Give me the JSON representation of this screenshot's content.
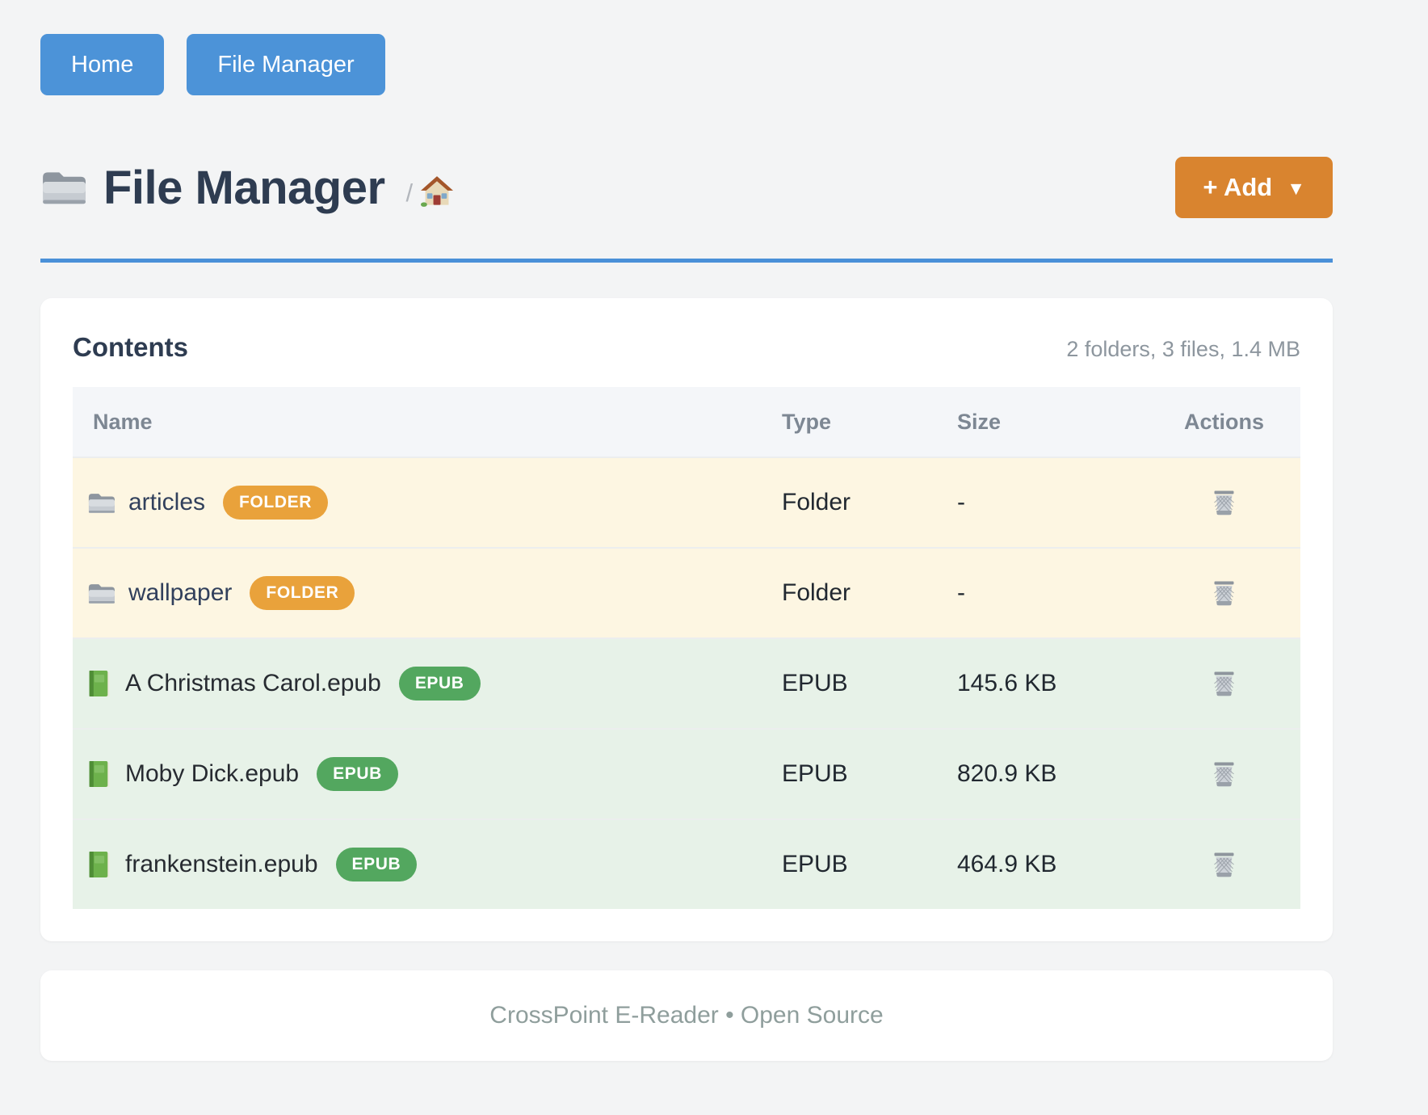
{
  "nav": {
    "buttons": [
      {
        "label": "Home"
      },
      {
        "label": "File Manager"
      }
    ]
  },
  "header": {
    "title": "File Manager",
    "title_icon": "folder-icon",
    "breadcrumb": {
      "separator": "/",
      "home_icon": "house-icon"
    },
    "add_button": {
      "label": "+ Add",
      "caret": "▼"
    }
  },
  "panel": {
    "title": "Contents",
    "summary": "2 folders, 3 files, 1.4 MB",
    "table": {
      "columns": [
        "Name",
        "Type",
        "Size",
        "Actions"
      ],
      "rows": [
        {
          "name": "articles",
          "kind": "folder",
          "icon": "folder-icon",
          "badge": "FOLDER",
          "type": "Folder",
          "size": "-",
          "action_icon": "trash-icon"
        },
        {
          "name": "wallpaper",
          "kind": "folder",
          "icon": "folder-icon",
          "badge": "FOLDER",
          "type": "Folder",
          "size": "-",
          "action_icon": "trash-icon"
        },
        {
          "name": "A Christmas Carol.epub",
          "kind": "epub",
          "icon": "book-icon",
          "badge": "EPUB",
          "type": "EPUB",
          "size": "145.6 KB",
          "action_icon": "trash-icon"
        },
        {
          "name": "Moby Dick.epub",
          "kind": "epub",
          "icon": "book-icon",
          "badge": "EPUB",
          "type": "EPUB",
          "size": "820.9 KB",
          "action_icon": "trash-icon"
        },
        {
          "name": "frankenstein.epub",
          "kind": "epub",
          "icon": "book-icon",
          "badge": "EPUB",
          "type": "EPUB",
          "size": "464.9 KB",
          "action_icon": "trash-icon"
        }
      ]
    }
  },
  "footer": {
    "text": "CrossPoint E-Reader • Open Source"
  },
  "colors": {
    "accent_blue": "#4c93d8",
    "rule_blue": "#4a90d8",
    "accent_orange": "#d9842f",
    "folder_badge": "#e9a23b",
    "epub_badge": "#53a75f",
    "folder_row_bg": "#fdf6e2",
    "epub_row_bg": "#e7f2e8",
    "table_header_bg": "#f4f6f9",
    "page_bg": "#f3f4f5"
  }
}
